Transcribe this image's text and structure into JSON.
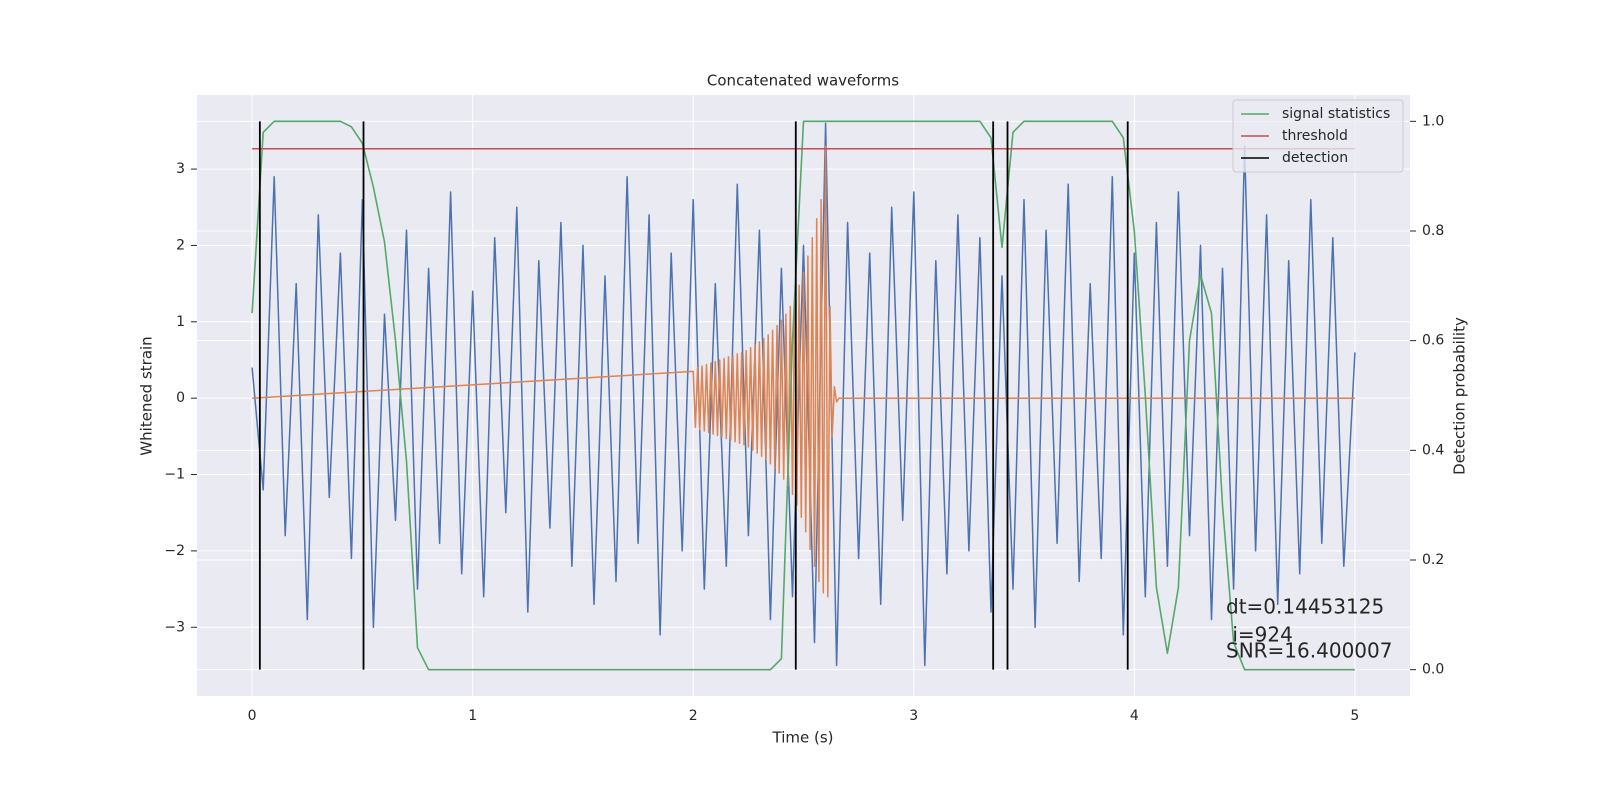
{
  "chart_data": {
    "type": "line",
    "title": "Concatenated waveforms",
    "xlabel": "Time (s)",
    "ylabel": "Whitened strain",
    "y2label": "Detection probability",
    "xlim": [
      -0.25,
      5.25
    ],
    "ylim": [
      -3.9,
      3.97
    ],
    "y2lim": [
      -0.048,
      1.048
    ],
    "xticks": [
      0,
      1,
      2,
      3,
      4,
      5
    ],
    "yticks": [
      {
        "value": -3,
        "label": "−3"
      },
      {
        "value": -2,
        "label": "−2"
      },
      {
        "value": -1,
        "label": "−1"
      },
      0,
      1,
      2,
      3
    ],
    "y2ticks": [
      {
        "value": 0,
        "label": "0.0"
      },
      0.2,
      0.4,
      0.6,
      0.8,
      {
        "value": 1,
        "label": "1.0"
      }
    ],
    "grid": true,
    "legend": "upper right",
    "series": [
      {
        "color": "#4c72b0",
        "x": [
          0,
          0.05,
          0.1,
          0.15,
          0.2,
          0.25,
          0.3,
          0.35,
          0.4,
          0.45,
          0.5,
          0.55,
          0.6,
          0.65,
          0.7,
          0.75,
          0.8,
          0.85,
          0.9,
          0.95,
          1,
          1.05,
          1.1,
          1.15,
          1.2,
          1.25,
          1.3,
          1.35,
          1.4,
          1.45,
          1.5,
          1.55,
          1.6,
          1.65,
          1.7,
          1.75,
          1.8,
          1.85,
          1.9,
          1.95,
          2,
          2.05,
          2.1,
          2.15,
          2.2,
          2.25,
          2.3,
          2.35,
          2.4,
          2.45,
          2.5,
          2.55,
          2.6,
          2.65,
          2.7,
          2.75,
          2.8,
          2.85,
          2.9,
          2.95,
          3,
          3.05,
          3.1,
          3.15,
          3.2,
          3.25,
          3.3,
          3.35,
          3.4,
          3.45,
          3.5,
          3.55,
          3.6,
          3.65,
          3.7,
          3.75,
          3.8,
          3.85,
          3.9,
          3.95,
          4,
          4.05,
          4.1,
          4.15,
          4.2,
          4.25,
          4.3,
          4.35,
          4.4,
          4.45,
          4.5,
          4.55,
          4.6,
          4.65,
          4.7,
          4.75,
          4.8,
          4.85,
          4.9,
          4.95,
          5
        ],
        "values": [
          0.4,
          -1.2,
          2.9,
          -1.8,
          1.5,
          -2.9,
          2.4,
          -1.3,
          1.9,
          -2.1,
          2.6,
          -3.0,
          1.1,
          -1.6,
          2.2,
          -2.5,
          1.7,
          -1.9,
          2.7,
          -2.3,
          1.4,
          -2.6,
          2.1,
          -1.5,
          2.5,
          -2.8,
          1.8,
          -1.7,
          2.3,
          -2.2,
          2.0,
          -2.7,
          1.6,
          -2.4,
          2.9,
          -1.9,
          2.4,
          -3.1,
          1.9,
          -2.0,
          2.6,
          -2.5,
          1.5,
          -2.2,
          2.8,
          -1.8,
          2.2,
          -2.9,
          1.7,
          -2.6,
          2.0,
          -3.2,
          3.6,
          -3.5,
          2.3,
          -2.1,
          1.9,
          -2.7,
          2.5,
          -1.6,
          2.7,
          -3.5,
          1.8,
          -2.3,
          2.4,
          -2.0,
          2.1,
          -2.8,
          1.6,
          -2.5,
          2.6,
          -3.0,
          2.2,
          -1.9,
          2.8,
          -2.4,
          1.5,
          -2.1,
          2.9,
          -3.1,
          1.9,
          -2.6,
          2.3,
          -2.2,
          2.7,
          -1.8,
          2.0,
          -2.9,
          1.7,
          -2.5,
          3.3,
          -2.0,
          2.4,
          -2.7,
          1.8,
          -2.3,
          2.6,
          -1.9,
          2.1,
          -2.2,
          0.6
        ]
      },
      {
        "color": "#dd8452",
        "x": [
          0,
          2,
          2.01,
          2.02,
          2.03,
          2.04,
          2.05,
          2.06,
          2.07,
          2.08,
          2.09,
          2.1,
          2.11,
          2.12,
          2.13,
          2.14,
          2.15,
          2.16,
          2.17,
          2.18,
          2.19,
          2.2,
          2.21,
          2.22,
          2.23,
          2.24,
          2.25,
          2.26,
          2.27,
          2.28,
          2.29,
          2.3,
          2.31,
          2.32,
          2.33,
          2.34,
          2.35,
          2.36,
          2.37,
          2.38,
          2.39,
          2.4,
          2.41,
          2.42,
          2.43,
          2.44,
          2.45,
          2.46,
          2.47,
          2.48,
          2.49,
          2.5,
          2.51,
          2.52,
          2.53,
          2.54,
          2.55,
          2.56,
          2.57,
          2.58,
          2.59,
          2.6,
          2.61,
          2.62,
          2.63,
          2.64,
          2.65,
          2.66,
          5
        ],
        "values": [
          0,
          0.35,
          -0.38,
          0.4,
          -0.41,
          0.42,
          -0.43,
          0.44,
          -0.45,
          0.46,
          -0.47,
          0.48,
          -0.49,
          0.5,
          -0.51,
          0.52,
          -0.53,
          0.54,
          -0.55,
          0.56,
          -0.57,
          0.58,
          -0.59,
          0.6,
          -0.61,
          0.62,
          -0.64,
          0.66,
          -0.68,
          0.7,
          -0.72,
          0.74,
          -0.76,
          0.78,
          -0.8,
          0.83,
          -0.86,
          0.89,
          -0.92,
          0.95,
          -0.98,
          1.02,
          -1.06,
          1.1,
          -1.15,
          1.2,
          -1.26,
          1.32,
          -1.4,
          1.48,
          -1.56,
          1.65,
          -1.75,
          1.86,
          -1.98,
          2.1,
          -2.2,
          2.35,
          -2.4,
          2.6,
          -2.55,
          3.3,
          -2.6,
          1.2,
          -0.5,
          0.15,
          -0.05,
          0,
          0
        ]
      },
      {
        "name": "signal statistics",
        "color": "#55a868",
        "axis": "y2",
        "x": [
          0,
          0.05,
          0.1,
          0.15,
          0.2,
          0.25,
          0.3,
          0.35,
          0.4,
          0.45,
          0.5,
          0.55,
          0.6,
          0.65,
          0.7,
          0.75,
          0.8,
          0.85,
          0.9,
          0.95,
          1,
          1.05,
          1.1,
          1.15,
          1.2,
          1.25,
          1.3,
          1.35,
          1.4,
          1.45,
          1.5,
          1.55,
          1.6,
          1.65,
          1.7,
          1.75,
          1.8,
          1.85,
          1.9,
          1.95,
          2,
          2.05,
          2.1,
          2.15,
          2.2,
          2.25,
          2.3,
          2.35,
          2.4,
          2.45,
          2.5,
          2.55,
          2.6,
          2.65,
          2.7,
          2.75,
          2.8,
          2.85,
          2.9,
          2.95,
          3,
          3.05,
          3.1,
          3.15,
          3.2,
          3.25,
          3.3,
          3.35,
          3.4,
          3.45,
          3.5,
          3.55,
          3.6,
          3.65,
          3.7,
          3.75,
          3.8,
          3.85,
          3.9,
          3.95,
          4,
          4.05,
          4.1,
          4.15,
          4.2,
          4.25,
          4.3,
          4.35,
          4.4,
          4.45,
          4.5,
          4.55,
          4.6,
          4.65,
          4.7,
          4.75,
          4.8,
          4.85,
          4.9,
          4.95,
          5
        ],
        "values": [
          0.65,
          0.98,
          1,
          1,
          1,
          1,
          1,
          1,
          1,
          0.99,
          0.96,
          0.88,
          0.78,
          0.6,
          0.38,
          0.04,
          0,
          0,
          0,
          0,
          0,
          0,
          0,
          0,
          0,
          0,
          0,
          0,
          0,
          0,
          0,
          0,
          0,
          0,
          0,
          0,
          0,
          0,
          0,
          0,
          0,
          0,
          0,
          0,
          0,
          0,
          0,
          0,
          0.02,
          0.6,
          1,
          1,
          1,
          1,
          1,
          1,
          1,
          1,
          1,
          1,
          1,
          1,
          1,
          1,
          1,
          1,
          1,
          0.97,
          0.77,
          0.98,
          1,
          1,
          1,
          1,
          1,
          1,
          1,
          1,
          1,
          0.97,
          0.8,
          0.5,
          0.15,
          0.03,
          0.15,
          0.6,
          0.72,
          0.65,
          0.3,
          0.05,
          0,
          0,
          0,
          0,
          0,
          0,
          0,
          0,
          0,
          0,
          0
        ]
      }
    ],
    "threshold": {
      "name": "threshold",
      "color": "#c44e52",
      "axis": "y2",
      "value": 0.95,
      "xrange": [
        0,
        5
      ]
    },
    "detection": {
      "name": "detection",
      "color": "#000000",
      "axis": "y2",
      "x": [
        0.035,
        0.505,
        2.465,
        3.36,
        3.425,
        3.97
      ],
      "y2range": [
        0,
        1
      ]
    },
    "annotations": [
      "dt=0.14453125",
      " i=924",
      "SNR=16.400007"
    ]
  }
}
